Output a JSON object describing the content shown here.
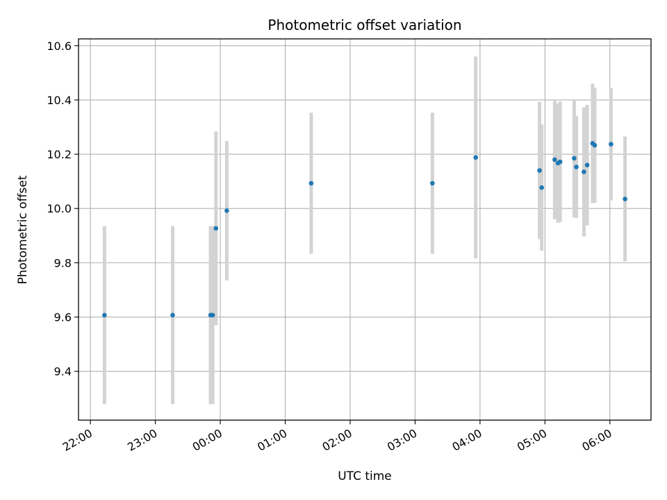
{
  "chart_data": {
    "type": "scatter",
    "title": "Photometric offset variation",
    "xlabel": "UTC time",
    "ylabel": "Photometric offset",
    "x_ticks": [
      {
        "t": 0,
        "label": "22:00"
      },
      {
        "t": 60,
        "label": "23:00"
      },
      {
        "t": 120,
        "label": "00:00"
      },
      {
        "t": 180,
        "label": "01:00"
      },
      {
        "t": 240,
        "label": "02:00"
      },
      {
        "t": 300,
        "label": "03:00"
      },
      {
        "t": 360,
        "label": "04:00"
      },
      {
        "t": 420,
        "label": "05:00"
      },
      {
        "t": 480,
        "label": "06:00"
      }
    ],
    "y_ticks": [
      9.4,
      9.6,
      9.8,
      10.0,
      10.2,
      10.4,
      10.6
    ],
    "xlim": [
      -11,
      518
    ],
    "ylim": [
      9.22,
      10.625
    ],
    "grid": true,
    "points": [
      {
        "time": "22:13",
        "t": 13,
        "y": 9.607,
        "err": 0.328
      },
      {
        "time": "23:16",
        "t": 76,
        "y": 9.607,
        "err": 0.328
      },
      {
        "time": "23:51",
        "t": 111,
        "y": 9.607,
        "err": 0.328
      },
      {
        "time": "23:53",
        "t": 113,
        "y": 9.607,
        "err": 0.328
      },
      {
        "time": "23:56",
        "t": 116,
        "y": 9.927,
        "err": 0.357
      },
      {
        "time": "00:06",
        "t": 126,
        "y": 9.992,
        "err": 0.257
      },
      {
        "time": "01:24",
        "t": 204,
        "y": 10.093,
        "err": 0.26
      },
      {
        "time": "03:16",
        "t": 316,
        "y": 10.093,
        "err": 0.26
      },
      {
        "time": "03:56",
        "t": 356,
        "y": 10.188,
        "err": 0.372
      },
      {
        "time": "04:55",
        "t": 415,
        "y": 10.14,
        "err": 0.253
      },
      {
        "time": "04:57",
        "t": 417,
        "y": 10.077,
        "err": 0.233
      },
      {
        "time": "05:09",
        "t": 429,
        "y": 10.18,
        "err": 0.22
      },
      {
        "time": "05:12",
        "t": 432,
        "y": 10.167,
        "err": 0.22
      },
      {
        "time": "05:14",
        "t": 434,
        "y": 10.172,
        "err": 0.222
      },
      {
        "time": "05:27",
        "t": 447,
        "y": 10.185,
        "err": 0.218
      },
      {
        "time": "05:29",
        "t": 449,
        "y": 10.153,
        "err": 0.188
      },
      {
        "time": "05:36",
        "t": 456,
        "y": 10.135,
        "err": 0.238
      },
      {
        "time": "05:39",
        "t": 459,
        "y": 10.16,
        "err": 0.222
      },
      {
        "time": "05:44",
        "t": 464,
        "y": 10.24,
        "err": 0.22
      },
      {
        "time": "05:46",
        "t": 466,
        "y": 10.233,
        "err": 0.212
      },
      {
        "time": "06:01",
        "t": 481,
        "y": 10.237,
        "err": 0.207
      },
      {
        "time": "06:14",
        "t": 494,
        "y": 10.035,
        "err": 0.23
      }
    ],
    "colors": {
      "point": "#1f77b4",
      "errorbar": "#d3d3d3",
      "grid": "#b0b0b0",
      "axis": "#000000"
    }
  }
}
